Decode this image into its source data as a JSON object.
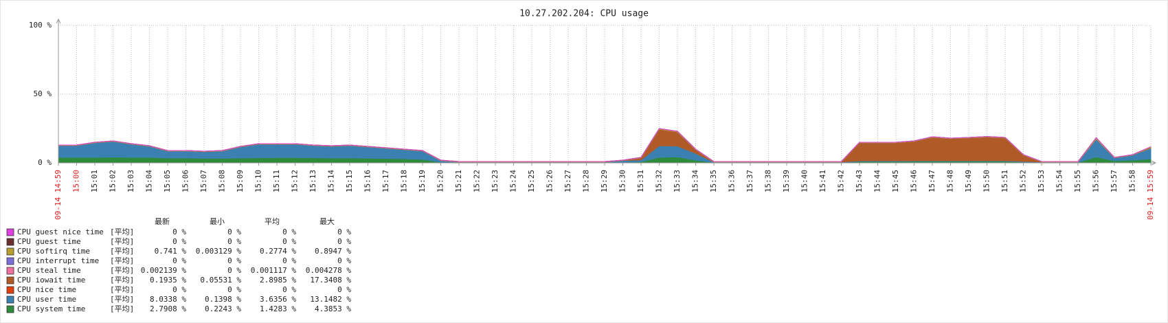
{
  "chart_data": {
    "type": "stacked-area",
    "title": "10.27.202.204: CPU usage",
    "categories": [
      "09-14 14:59",
      "15:00",
      "15:01",
      "15:02",
      "15:03",
      "15:04",
      "15:05",
      "15:06",
      "15:07",
      "15:08",
      "15:09",
      "15:10",
      "15:11",
      "15:12",
      "15:13",
      "15:14",
      "15:15",
      "15:16",
      "15:17",
      "15:18",
      "15:19",
      "15:20",
      "15:21",
      "15:22",
      "15:23",
      "15:24",
      "15:25",
      "15:26",
      "15:27",
      "15:28",
      "15:29",
      "15:30",
      "15:31",
      "15:32",
      "15:33",
      "15:34",
      "15:35",
      "15:36",
      "15:37",
      "15:38",
      "15:39",
      "15:40",
      "15:41",
      "15:42",
      "15:43",
      "15:44",
      "15:45",
      "15:46",
      "15:47",
      "15:48",
      "15:49",
      "15:50",
      "15:51",
      "15:52",
      "15:53",
      "15:54",
      "15:55",
      "15:56",
      "15:57",
      "15:58",
      "09-14 15:59"
    ],
    "highlight_ticks": [
      0,
      1,
      60
    ],
    "highlight_color": "#e02020",
    "ylim": [
      0,
      100
    ],
    "yticks": [
      {
        "value": 0,
        "label": "0 %"
      },
      {
        "value": 50,
        "label": "50 %"
      },
      {
        "value": 100,
        "label": "100 %"
      }
    ],
    "grid": true,
    "stat_headers": [
      "最新",
      "最小",
      "平均",
      "最大"
    ],
    "series": [
      {
        "name": "CPU guest nice time",
        "func": "[平均]",
        "color": "#e040e0",
        "stats": [
          "0 %",
          "0 %",
          "0 %",
          "0 %"
        ],
        "values": [
          0,
          0,
          0,
          0,
          0,
          0,
          0,
          0,
          0,
          0,
          0,
          0,
          0,
          0,
          0,
          0,
          0,
          0,
          0,
          0,
          0,
          0,
          0,
          0,
          0,
          0,
          0,
          0,
          0,
          0,
          0,
          0,
          0,
          0,
          0,
          0,
          0,
          0,
          0,
          0,
          0,
          0,
          0,
          0,
          0,
          0,
          0,
          0,
          0,
          0,
          0,
          0,
          0,
          0,
          0,
          0,
          0,
          0,
          0,
          0,
          0
        ]
      },
      {
        "name": "CPU guest time",
        "func": "[平均]",
        "color": "#6b2e2e",
        "stats": [
          "0 %",
          "0 %",
          "0 %",
          "0 %"
        ],
        "values": [
          0,
          0,
          0,
          0,
          0,
          0,
          0,
          0,
          0,
          0,
          0,
          0,
          0,
          0,
          0,
          0,
          0,
          0,
          0,
          0,
          0,
          0,
          0,
          0,
          0,
          0,
          0,
          0,
          0,
          0,
          0,
          0,
          0,
          0,
          0,
          0,
          0,
          0,
          0,
          0,
          0,
          0,
          0,
          0,
          0,
          0,
          0,
          0,
          0,
          0,
          0,
          0,
          0,
          0,
          0,
          0,
          0,
          0,
          0,
          0,
          0
        ]
      },
      {
        "name": "CPU softirq time",
        "func": "[平均]",
        "color": "#b8a030",
        "stats": [
          "0.741 %",
          "0.003129 %",
          "0.2774 %",
          "0.8947 %"
        ],
        "values": [
          0.3,
          0.3,
          0.3,
          0.3,
          0.3,
          0.3,
          0.3,
          0.3,
          0.3,
          0.3,
          0.3,
          0.3,
          0.3,
          0.3,
          0.3,
          0.3,
          0.3,
          0.3,
          0.3,
          0.3,
          0.3,
          0.3,
          0.3,
          0.3,
          0.3,
          0.3,
          0.3,
          0.3,
          0.3,
          0.3,
          0.3,
          0.3,
          0.3,
          0.5,
          0.5,
          0.3,
          0.3,
          0.3,
          0.3,
          0.3,
          0.3,
          0.3,
          0.3,
          0.3,
          0.3,
          0.3,
          0.3,
          0.3,
          0.3,
          0.3,
          0.3,
          0.3,
          0.3,
          0.3,
          0.3,
          0.3,
          0.3,
          0.9,
          0.3,
          0.3,
          0.7
        ]
      },
      {
        "name": "CPU interrupt time",
        "func": "[平均]",
        "color": "#7a70d8",
        "stats": [
          "0 %",
          "0 %",
          "0 %",
          "0 %"
        ],
        "values": [
          0,
          0,
          0,
          0,
          0,
          0,
          0,
          0,
          0,
          0,
          0,
          0,
          0,
          0,
          0,
          0,
          0,
          0,
          0,
          0,
          0,
          0,
          0,
          0,
          0,
          0,
          0,
          0,
          0,
          0,
          0,
          0,
          0,
          0,
          0,
          0,
          0,
          0,
          0,
          0,
          0,
          0,
          0,
          0,
          0,
          0,
          0,
          0,
          0,
          0,
          0,
          0,
          0,
          0,
          0,
          0,
          0,
          0,
          0,
          0,
          0
        ]
      },
      {
        "name": "CPU steal time",
        "func": "[平均]",
        "color": "#f070a0",
        "stats": [
          "0.002139 %",
          "0 %",
          "0.001117 %",
          "0.004278 %"
        ],
        "values": [
          0,
          0,
          0,
          0,
          0,
          0,
          0,
          0,
          0,
          0,
          0,
          0,
          0,
          0,
          0,
          0,
          0,
          0,
          0,
          0,
          0,
          0,
          0,
          0,
          0,
          0,
          0,
          0,
          0,
          0,
          0,
          0,
          0,
          0,
          0,
          0,
          0,
          0,
          0,
          0,
          0,
          0,
          0,
          0,
          0,
          0,
          0,
          0,
          0,
          0,
          0,
          0,
          0,
          0,
          0,
          0,
          0,
          0,
          0,
          0,
          0
        ]
      },
      {
        "name": "CPU iowait time",
        "func": "[平均]",
        "color": "#b05a28",
        "stats": [
          "0.1935 %",
          "0.05531 %",
          "2.8985 %",
          "17.3408 %"
        ],
        "values": [
          0,
          0,
          0,
          0,
          0,
          0,
          0,
          0,
          0,
          0,
          0,
          0,
          0,
          0,
          0,
          0,
          0,
          0,
          0,
          0,
          0,
          0,
          0,
          0,
          0,
          0,
          0,
          0,
          0,
          0,
          0,
          0,
          1.5,
          12,
          10.2,
          2.7,
          0,
          0,
          0,
          0,
          0,
          0,
          0,
          0,
          13.2,
          13.2,
          13.2,
          14.1,
          17.1,
          16.1,
          16.6,
          17.3,
          16.6,
          4.6,
          0,
          0,
          0,
          0,
          0,
          0,
          0.2
        ]
      },
      {
        "name": "CPU nice time",
        "func": "[平均]",
        "color": "#e04010",
        "stats": [
          "0 %",
          "0 %",
          "0 %",
          "0 %"
        ],
        "values": [
          0,
          0,
          0,
          0,
          0,
          0,
          0,
          0,
          0,
          0,
          0,
          0,
          0,
          0,
          0,
          0,
          0,
          0,
          0,
          0,
          0,
          0,
          0,
          0,
          0,
          0,
          0,
          0,
          0,
          0,
          0,
          0,
          0,
          0,
          0,
          0,
          0,
          0,
          0,
          0,
          0,
          0,
          0,
          0,
          0,
          0,
          0,
          0,
          0,
          0,
          0,
          0,
          0,
          0,
          0,
          0,
          0,
          0,
          0,
          0,
          0
        ]
      },
      {
        "name": "CPU user time",
        "func": "[平均]",
        "color": "#3a80b0",
        "stats": [
          "8.0338 %",
          "0.1398 %",
          "3.6356 %",
          "13.1482 %"
        ],
        "values": [
          8.7,
          8.7,
          10.7,
          11.5,
          9.7,
          8.2,
          5.2,
          5.2,
          4.9,
          5.4,
          8.2,
          10,
          9.9,
          9.9,
          9,
          8.7,
          9.2,
          8.3,
          7.5,
          6.7,
          6.2,
          1.2,
          0.4,
          0.4,
          0.4,
          0.4,
          0.4,
          0.4,
          0.4,
          0.4,
          0.4,
          1.3,
          1.4,
          8.5,
          8,
          5,
          0.4,
          0.4,
          0.4,
          0.4,
          0.4,
          0.4,
          0.4,
          0.4,
          0.5,
          0.5,
          0.5,
          0.5,
          0.5,
          0.5,
          0.5,
          0.5,
          0.5,
          0.5,
          0.4,
          0.4,
          0.4,
          13.1,
          2.2,
          3.7,
          8
        ]
      },
      {
        "name": "CPU system time",
        "func": "[平均]",
        "color": "#2e8b3a",
        "stats": [
          "2.7908 %",
          "0.2243 %",
          "1.4283 %",
          "4.3853 %"
        ],
        "values": [
          4,
          4,
          4,
          4.2,
          4,
          4,
          3.5,
          3.5,
          3.3,
          3.3,
          3.5,
          3.7,
          3.8,
          3.8,
          3.7,
          3.5,
          3.5,
          3.4,
          3.2,
          3,
          2.5,
          0.5,
          0.3,
          0.3,
          0.3,
          0.3,
          0.3,
          0.3,
          0.3,
          0.3,
          0.3,
          0.4,
          0.8,
          4,
          4.3,
          2,
          0.3,
          0.3,
          0.3,
          0.3,
          0.3,
          0.3,
          0.3,
          0.3,
          1,
          1,
          1,
          1.1,
          1.1,
          1.1,
          1.1,
          1.1,
          1.1,
          0.6,
          0.3,
          0.3,
          0.3,
          4.3,
          1.5,
          2,
          2.8
        ]
      }
    ]
  }
}
